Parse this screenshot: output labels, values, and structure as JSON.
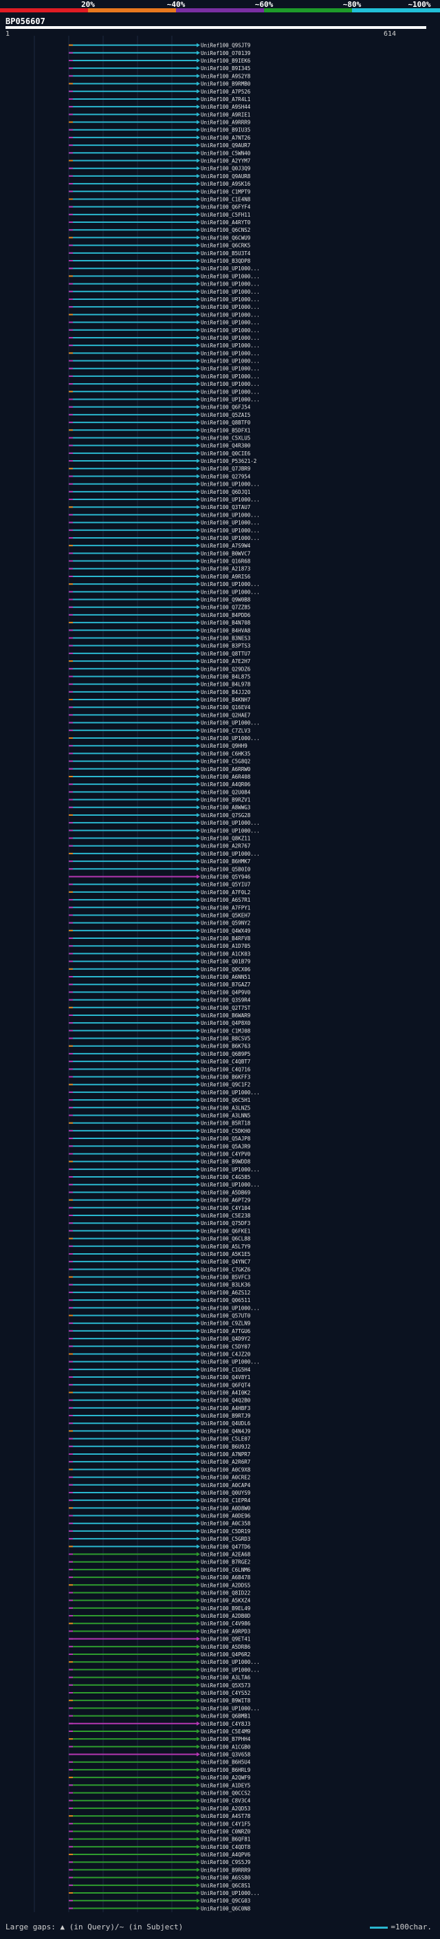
{
  "legend": {
    "labels": [
      "20%",
      "~40%",
      "~60%",
      "~80%",
      "~100%"
    ],
    "colors": [
      "#e01c24",
      "#e8781f",
      "#7a2fa3",
      "#1e9a2a",
      "#22c0d8"
    ]
  },
  "query": {
    "id": "BP056607",
    "start": "1",
    "end": "614"
  },
  "footer": {
    "left_text": "Large gaps: ▲ (in Query)/~ (in Subject)",
    "right_text": "=100char."
  },
  "palette": {
    "cyan": "#2ab7cf",
    "green": "#2e9c2e",
    "magenta": "#b437b2",
    "orange": "#e0821e",
    "lightblue": "#7fb3ff"
  },
  "hits": [
    "UniRef100_Q9SJT9",
    "UniRef100_O70139",
    "UniRef100_B9IEK6",
    "UniRef100_B9I345",
    "UniRef100_A9S2Y8",
    "UniRef100_B9RMB0",
    "UniRef100_A7P526",
    "UniRef100_A7R4L1",
    "UniRef100_A9SH44",
    "UniRef100_A9RIE1",
    "UniRef100_A9RRR9",
    "UniRef100_B9IU35",
    "UniRef100_A7NT26",
    "UniRef100_Q9AUR7",
    "UniRef100_C5WN40",
    "UniRef100_A2YYM7",
    "UniRef100_Q0J3Q9",
    "UniRef100_Q9AUR8",
    "UniRef100_A9SK16",
    "UniRef100_C1MPT9",
    "UniRef100_C1E4N8",
    "UniRef100_Q6FYF4",
    "UniRef100_C5FH11",
    "UniRef100_A4RYT0",
    "UniRef100_Q6CNS2",
    "UniRef100_Q6CWU9",
    "UniRef100_Q6CRK5",
    "UniRef100_B5U3T4",
    "UniRef100_B3QDP8",
    "UniRef100_UP1000...",
    "UniRef100_UP1000...",
    "UniRef100_UP1000...",
    "UniRef100_UP1000...",
    "UniRef100_UP1000...",
    "UniRef100_UP1000...",
    "UniRef100_UP1000...",
    "UniRef100_UP1000...",
    "UniRef100_UP1000...",
    "UniRef100_UP1000...",
    "UniRef100_UP1000...",
    "UniRef100_UP1000...",
    "UniRef100_UP1000...",
    "UniRef100_UP1000...",
    "UniRef100_UP1000...",
    "UniRef100_UP1000...",
    "UniRef100_UP1000...",
    "UniRef100_UP1000...",
    "UniRef100_Q6FJ54",
    "UniRef100_Q5ZAI5",
    "UniRef100_Q8BTF0",
    "UniRef100_B5DFX1",
    "UniRef100_C5XLU5",
    "UniRef100_Q4R300",
    "UniRef100_Q0CIE6",
    "UniRef100_P53621-2",
    "UniRef100_Q7JBR9",
    "UniRef100_Q27954",
    "UniRef100_UP1000...",
    "UniRef100_Q6DJQ1",
    "UniRef100_UP1000...",
    "UniRef100_Q3TAU7",
    "UniRef100_UP1000...",
    "UniRef100_UP1000...",
    "UniRef100_UP1000...",
    "UniRef100_UP1000...",
    "UniRef100_A7S9W4",
    "UniRef100_B0WVC7",
    "UniRef100_Q16R68",
    "UniRef100_A21873",
    "UniRef100_A9RIS6",
    "UniRef100_UP1000...",
    "UniRef100_UP1000...",
    "UniRef100_Q9W0B8",
    "UniRef100_Q7ZZ85",
    "UniRef100_B4PDD6",
    "UniRef100_B4N708",
    "UniRef100_B4HVA8",
    "UniRef100_B3NES3",
    "UniRef100_B3PTS3",
    "UniRef100_Q8TTU7",
    "UniRef100_A7E2H7",
    "UniRef100_Q29DZ6",
    "UniRef100_B4L875",
    "UniRef100_B4L978",
    "UniRef100_B4JJ20",
    "UniRef100_B4KNH7",
    "UniRef100_Q16EV4",
    "UniRef100_Q2HAE7",
    "UniRef100_UP1000...",
    "UniRef100_C7ZLV3",
    "UniRef100_UP1000...",
    "UniRef100_Q9HH9",
    "UniRef100_C6HK35",
    "UniRef100_C5G8Q2",
    "UniRef100_A6RRW0",
    "UniRef100_A6R408",
    "UniRef100_A4QR06",
    "UniRef100_Q2U084",
    "UniRef100_B9RZV1",
    "UniRef100_A8WWG3",
    "UniRef100_Q7SG28",
    "UniRef100_UP1000...",
    "UniRef100_UP1000...",
    "UniRef100_Q8KZ11",
    "UniRef100_A2R767",
    "UniRef100_UP1000...",
    "UniRef100_B6HMK7",
    "UniRef100_Q5B0I0",
    "UniRef100_Q5Y946",
    "UniRef100_Q5YIU7",
    "UniRef100_A7F0L2",
    "UniRef100_A6S7R1",
    "UniRef100_A7FPY1",
    "UniRef100_Q5KEH7",
    "UniRef100_Q59NY2",
    "UniRef100_Q4WX49",
    "UniRef100_B4RFV8",
    "UniRef100_A1D705",
    "UniRef100_A1CK03",
    "UniRef100_Q01B79",
    "UniRef100_Q0CX06",
    "UniRef100_A6NN51",
    "UniRef100_B7GAZ7",
    "UniRef100_Q4P9V0",
    "UniRef100_Q3S9R4",
    "UniRef100_Q2T7ST",
    "UniRef100_B6WAR9",
    "UniRef100_Q4P8X0",
    "UniRef100_C1MJ08",
    "UniRef100_B8CSV5",
    "UniRef100_B6K763",
    "UniRef100_Q6B9P5",
    "UniRef100_C4QBT7",
    "UniRef100_C4Q716",
    "UniRef100_B6KFF3",
    "UniRef100_Q9C1F2",
    "UniRef100_UP1000...",
    "UniRef100_Q6C5H1",
    "UniRef100_A3LNZ5",
    "UniRef100_A3LNN5",
    "UniRef100_B5RT18",
    "UniRef100_C5DKH0",
    "UniRef100_Q5AJP8",
    "UniRef100_Q5AJR9",
    "UniRef100_C4YPV0",
    "UniRef100_B9WDD8",
    "UniRef100_UP1000...",
    "UniRef100_C4G585",
    "UniRef100_UP1000...",
    "UniRef100_A5DB69",
    "UniRef100_A6PT29",
    "UniRef100_C4Y104",
    "UniRef100_C5E238",
    "UniRef100_Q75DF3",
    "UniRef100_Q6FKE1",
    "UniRef100_Q6CL88",
    "UniRef100_A5L7Y9",
    "UniRef100_A5K1E5",
    "UniRef100_Q4YNC7",
    "UniRef100_C7GKZ6",
    "UniRef100_B5VFC3",
    "UniRef100_B3LK36",
    "UniRef100_A6ZS12",
    "UniRef100_Q06511",
    "UniRef100_UP1000...",
    "UniRef100_Q57UT0",
    "UniRef100_C9ZLN9",
    "UniRef100_A7TGU6",
    "UniRef100_Q4D9Y2",
    "UniRef100_C5DY07",
    "UniRef100_C4JZ20",
    "UniRef100_UP1000...",
    "UniRef100_C1G5H4",
    "UniRef100_Q4V8Y1",
    "UniRef100_Q6FQT4",
    "UniRef100_A4I0K2",
    "UniRef100_Q4Q2B0",
    "UniRef100_A4HBF3",
    "UniRef100_B9RTJ9",
    "UniRef100_Q4UDL6",
    "UniRef100_Q4N4J9",
    "UniRef100_C5LE07",
    "UniRef100_B6U9J2",
    "UniRef100_A7NPR7",
    "UniRef100_A2R6R7",
    "UniRef100_A0C9X8",
    "UniRef100_A0CRE2",
    "UniRef100_A0CAP4",
    "UniRef100_Q0UYS9",
    "UniRef100_C1EPR4",
    "UniRef100_A0D8W0",
    "UniRef100_A0DE96",
    "UniRef100_A0C358",
    "UniRef100_C5DR19",
    "UniRef100_C5GRD3",
    "UniRef100_Q47TD6",
    "UniRef100_A2EA68",
    "UniRef100_B7RGE2",
    "UniRef100_C6LNM6",
    "UniRef100_A6B478",
    "UniRef100_A2DDS5",
    "UniRef100_Q8ID22",
    "UniRef100_A5KXZ4",
    "UniRef100_B9EL49",
    "UniRef100_A2DB0D",
    "UniRef100_C4V986",
    "UniRef100_A9RPD3",
    "UniRef100_Q9ET41",
    "UniRef100_A5DR86",
    "UniRef100_Q4P6R2",
    "UniRef100_UP1000...",
    "UniRef100_UP1000...",
    "UniRef100_A3LTA6",
    "UniRef100_Q5X573",
    "UniRef100_C4YS52",
    "UniRef100_B9WIT8",
    "UniRef100_UP1000...",
    "UniRef100_Q6BMB1",
    "UniRef100_C4Y8J3",
    "UniRef100_C5E4M9",
    "UniRef100_B7PHH4",
    "UniRef100_A1CGB0",
    "UniRef100_Q3V658",
    "UniRef100_B6H5U4",
    "UniRef100_B6HRL9",
    "UniRef100_A2QWF9",
    "UniRef100_A1DEY5",
    "UniRef100_Q0CCS2",
    "UniRef100_C8V3C4",
    "UniRef100_A2QD53",
    "UniRef100_A4ST78",
    "UniRef100_C4Y1F5",
    "UniRef100_C0NRZ0",
    "UniRef100_B6QF81",
    "UniRef100_C4QDT8",
    "UniRef100_A4QPV6",
    "UniRef100_C9S5J9",
    "UniRef100_B9RRR9",
    "UniRef100_A6SS80",
    "UniRef100_Q6C8S1",
    "UniRef100_UP1000...",
    "UniRef100_Q9CG03",
    "UniRef100_Q6C0N8"
  ]
}
